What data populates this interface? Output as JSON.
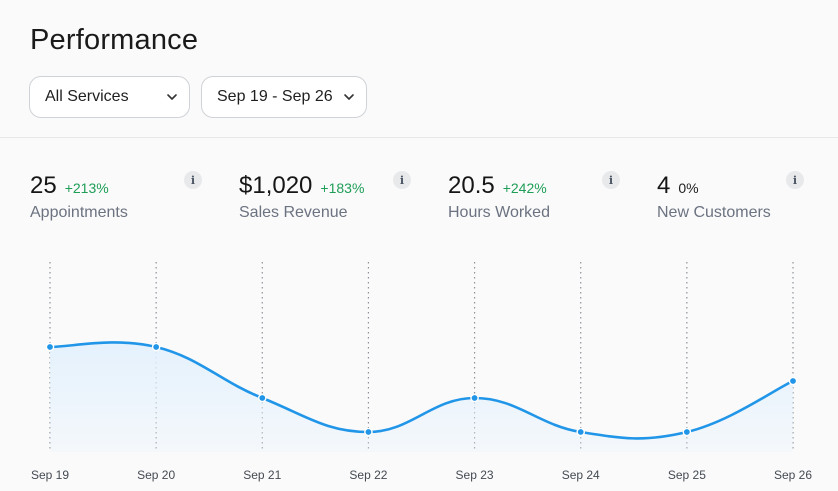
{
  "page": {
    "title": "Performance"
  },
  "filters": {
    "service": {
      "value": "All Services"
    },
    "date_range": {
      "value": "Sep 19 - Sep 26"
    }
  },
  "stats": [
    {
      "value": "25",
      "change": "+213%",
      "label": "Appointments",
      "change_color": "#1e9e57"
    },
    {
      "value": "$1,020",
      "change": "+183%",
      "label": "Sales Revenue",
      "change_color": "#1e9e57"
    },
    {
      "value": "20.5",
      "change": "+242%",
      "label": "Hours Worked",
      "change_color": "#1e9e57"
    },
    {
      "value": "4",
      "change": "0%",
      "label": "New Customers",
      "change_color": "#1f1f1f"
    }
  ],
  "info_glyph": "i",
  "colors": {
    "line": "#2196e8",
    "fill": "#e3f1fd",
    "positive": "#1e9e57"
  },
  "chart_data": {
    "type": "line",
    "title": "",
    "categories": [
      "Sep 19",
      "Sep 20",
      "Sep 21",
      "Sep 22",
      "Sep 23",
      "Sep 24",
      "Sep 25",
      "Sep 26"
    ],
    "series": [
      {
        "name": "Appointments",
        "values": [
          6,
          6,
          3,
          1,
          3,
          1,
          1,
          4
        ]
      }
    ],
    "ylim": [
      0,
      10
    ],
    "xlabel": "",
    "ylabel": "",
    "grid": "vertical-dotted",
    "legend": "none"
  }
}
